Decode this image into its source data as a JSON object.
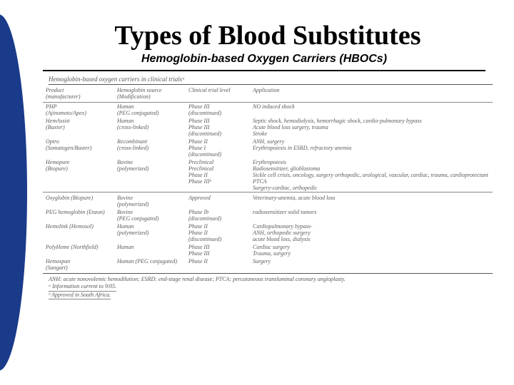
{
  "title": "Types of Blood Substitutes",
  "subtitle": "Hemoglobin-based Oxygen Carriers (HBOCs)",
  "tableCaption": "Hemoglobin-based oxygen carriers in clinical trialsᵃ",
  "headers": {
    "product": "Product",
    "manufacturer": "(manufacturer)",
    "source": "Hemoglobin source",
    "modification": "(Modification)",
    "trial": "Clinical trial level",
    "application": "Application"
  },
  "rows": [
    {
      "c1a": "PHP",
      "c1b": "(Ajinomoto/Apex)",
      "c2a": "Human",
      "c2b": "(PEG conjugated)",
      "c3a": "Phase III",
      "c3b": "(discontinued)",
      "c4": "NO induced shock"
    },
    {
      "c1a": "HemAssist",
      "c1b": "(Baxter)",
      "c2a": "Human",
      "c2b": "(cross-linked)",
      "c3a": "Phase III",
      "c3b": "Phase III",
      "c3c": "(discontinued)",
      "c4": "Septic shock, hemodialysis, hemorrhagic shock, cardio-pulmonary bypass",
      "c4b": "Acute blood loss surgery, trauma",
      "c4c": "Stroke"
    },
    {
      "c1a": "Optro",
      "c1b": "(Somatogen/Baxter)",
      "c2a": "Recombinant",
      "c2b": "(cross-linked)",
      "c3a": "Phase II",
      "c3b": "Phase I",
      "c3c": "(discontinued)",
      "c4": "ANH, surgery",
      "c4b": "Erythropoiesis in ESRD, refractory anemia"
    },
    {
      "c1a": "Hemopure",
      "c1b": "(Biopure)",
      "c2a": "Bovine",
      "c2b": "(polymerized)",
      "c3a": "Preclinical",
      "c3b": "Preclinical",
      "c3c": "Phase II",
      "c3d": "Phase IIIᵇ",
      "c4": "Erythropoiesis",
      "c4b": "Radiosensitizer, glioblastoma",
      "c4c": "Sickle cell crisis, oncology, surgery orthopedic, urological, vascular, cardiac, trauma, cardioprotectant PTCA",
      "c4d": "Surgery-cardiac, orthopedic"
    }
  ],
  "rows2": [
    {
      "c1a": "Oxyglobin (Biopure)",
      "c2a": "Bovine",
      "c2b": "(polymerized)",
      "c3a": "Approved",
      "c4": "Veterinary-anemia, acute blood loss"
    },
    {
      "c1a": "PEG hemoglobin (Enzon)",
      "c2a": "Bovine",
      "c2b": "(PEG conjugated)",
      "c3a": "Phase Ib",
      "c3b": "(discontinued)",
      "c4": "radiosensitizer solid tumors"
    },
    {
      "c1a": "Hemolink (Hemosol)",
      "c2a": "Human",
      "c2b": "(polymerized)",
      "c3a": "Phase II",
      "c3b": "Phase II",
      "c3c": "(discontinued)",
      "c4": "Cardiopulmonary bypass-",
      "c4b": "ANH, orthopedic surgery",
      "c4c": "acute blood loss, dialysis"
    },
    {
      "c1a": "PolyHeme (Northfield)",
      "c2a": "Human",
      "c3a": "Phase III",
      "c3b": "Phase III",
      "c4": "Cardiac surgery",
      "c4b": "Trauma, surgery"
    },
    {
      "c1a": "Hemospan",
      "c1b": "(Sangart)",
      "c2a": "Human (PEG conjugated)",
      "c3a": "Phase II",
      "c4": "Surgery"
    }
  ],
  "footnotes": {
    "abbrev": "ANH: acute nonovolemic hemodilution; ESRD: end-stage renal disease; PTCA: percutaneous transluminal coronary angioplasty.",
    "a": "ᵃ Information current to 9/05.",
    "b": "ᵇ Approved in South Africa."
  },
  "colors": {
    "accentRed": "#cc0000",
    "accentBlue": "#1a3a8a"
  }
}
